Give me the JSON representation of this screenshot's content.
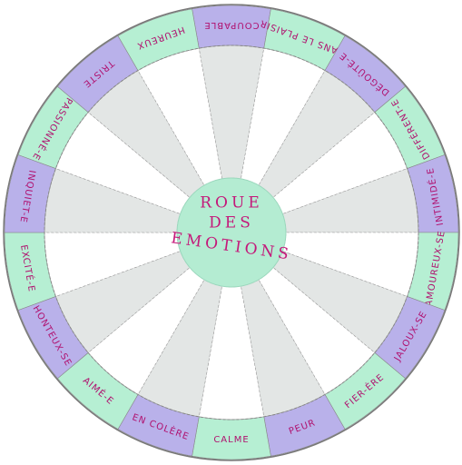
{
  "title": {
    "line1": "ROUE",
    "line2": "DES",
    "line3": "EMOTIONS"
  },
  "segments": [
    {
      "label": "COUPABLE"
    },
    {
      "label": "DANS LE PLAISIR"
    },
    {
      "label": "DÉGOÛTÉ-E"
    },
    {
      "label": "DIFFÉRENT-E"
    },
    {
      "label": "INTIMIDÉ-E"
    },
    {
      "label": "AMOUREUX-SE"
    },
    {
      "label": "JALOUX-SE"
    },
    {
      "label": "FIER-ÈRE"
    },
    {
      "label": "PEUR"
    },
    {
      "label": "CALME"
    },
    {
      "label": "EN COLÈRE"
    },
    {
      "label": "AIMÉ-E"
    },
    {
      "label": "HONTEUX-SE"
    },
    {
      "label": "EXCITÉ-E"
    },
    {
      "label": "INQUIET-E"
    },
    {
      "label": "PASSIONNÉ-E"
    },
    {
      "label": "TRISTE"
    },
    {
      "label": "HEUREUX"
    }
  ]
}
